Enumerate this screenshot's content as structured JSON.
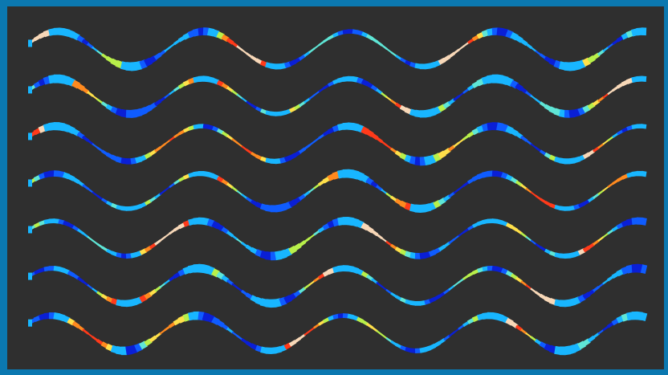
{
  "image": {
    "description_kind": "visualization",
    "colors": {
      "frame": "#0b78b0",
      "panel_background": "#2f2f2f"
    },
    "waves": {
      "count": 7,
      "colormap": [
        "#0a1fd6",
        "#0f5cff",
        "#18b6ff",
        "#5fe6d6",
        "#b8f04a",
        "#ffe04a",
        "#ff8a1f",
        "#ff3a1a",
        "#f8d8b8"
      ]
    }
  }
}
